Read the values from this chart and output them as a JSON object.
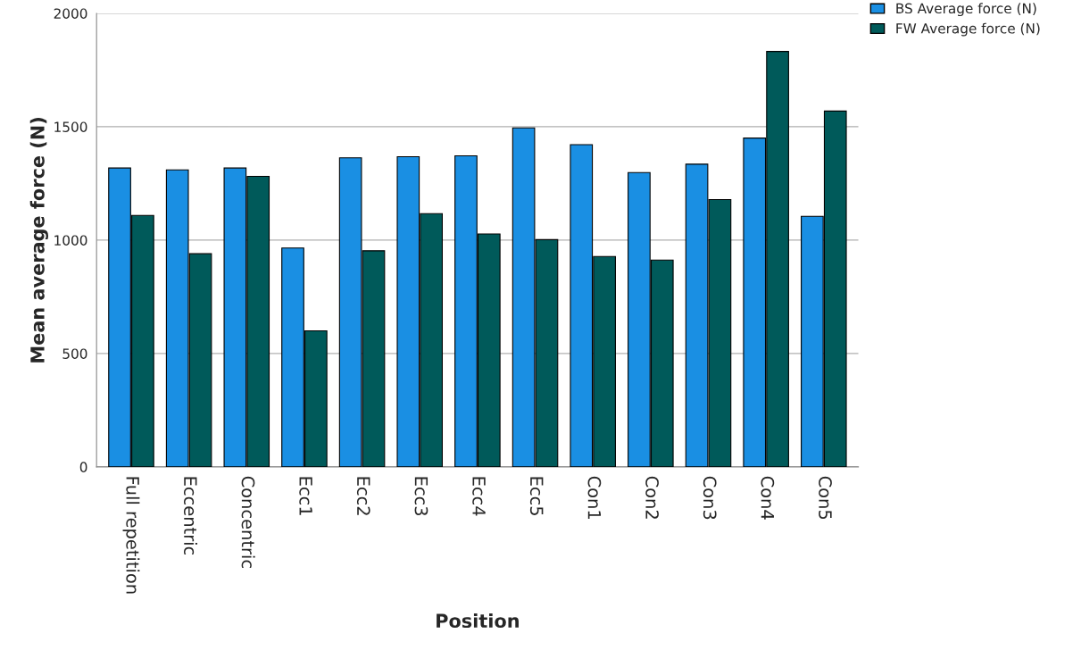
{
  "chart_data": {
    "type": "bar",
    "xlabel": "Position",
    "ylabel": "Mean average force (N)",
    "categories": [
      "Full repetition",
      "Eccentric",
      "Concentric",
      "Ecc1",
      "Ecc2",
      "Ecc3",
      "Ecc4",
      "Ecc5",
      "Con1",
      "Con2",
      "Con3",
      "Con4",
      "Con5"
    ],
    "series": [
      {
        "name": "BS Average force (N)",
        "color": "#1a8fe3",
        "values": [
          1318,
          1310,
          1318,
          965,
          1363,
          1368,
          1372,
          1495,
          1421,
          1298,
          1335,
          1450,
          1105
        ]
      },
      {
        "name": "FW Average force (N)",
        "color": "#005a5a",
        "values": [
          1109,
          940,
          1281,
          600,
          953,
          1117,
          1027,
          1002,
          928,
          912,
          1179,
          1832,
          1569
        ]
      }
    ],
    "ylim": [
      0,
      2000
    ],
    "yticks": [
      0,
      500,
      1000,
      1500,
      2000
    ],
    "grid": "y",
    "legend": "top right"
  }
}
